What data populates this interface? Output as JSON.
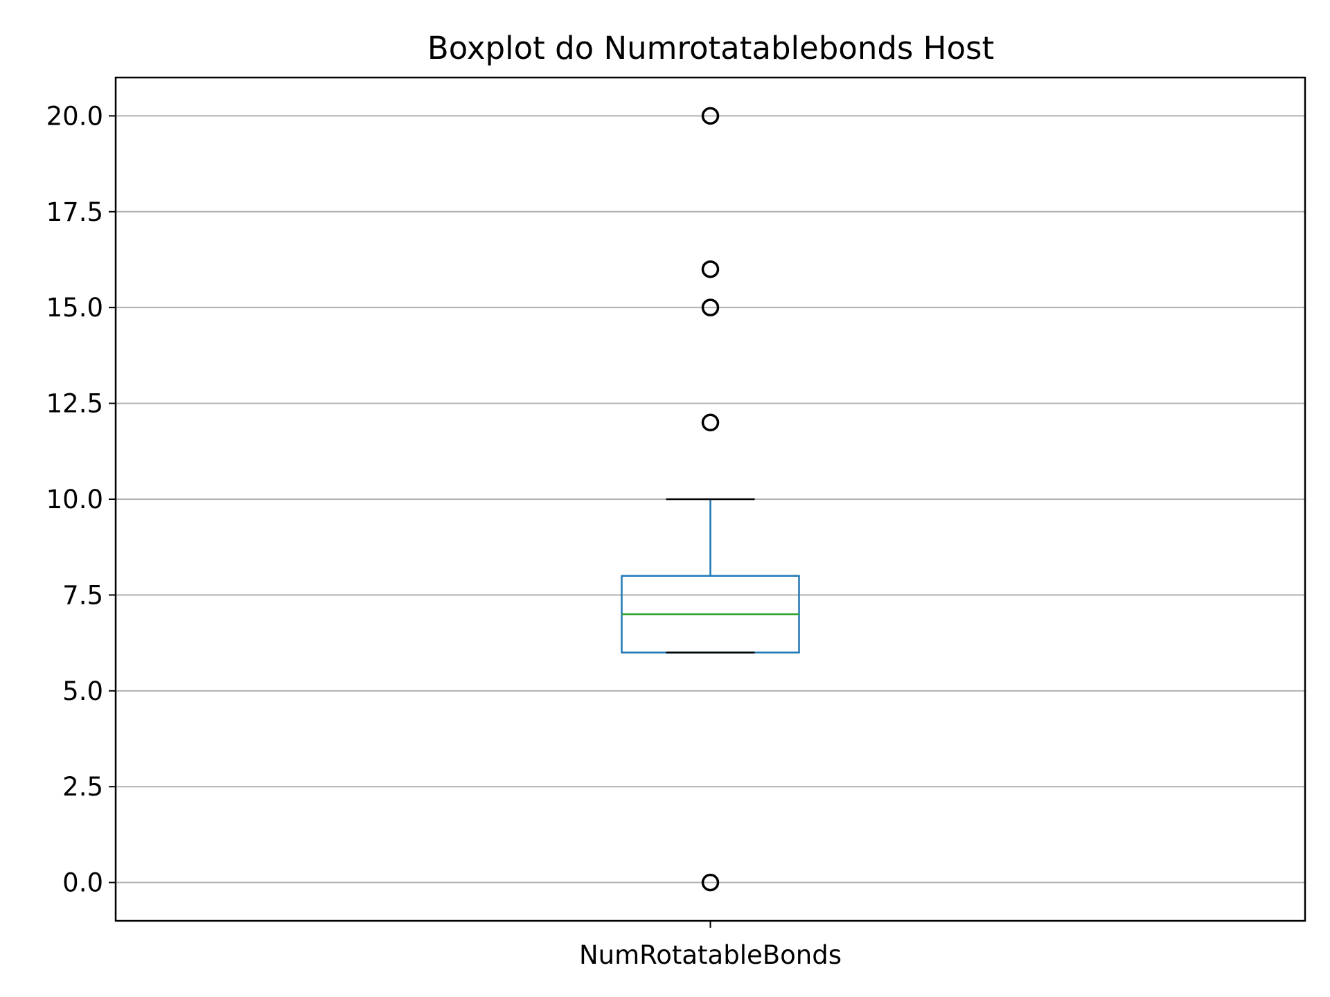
{
  "chart_data": {
    "type": "box",
    "title": "Boxplot do Numrotatablebonds Host",
    "xlabel": "",
    "ylabel": "",
    "categories": [
      "NumRotatableBonds"
    ],
    "ylim": [
      -1,
      21
    ],
    "yticks": [
      0.0,
      2.5,
      5.0,
      7.5,
      10.0,
      12.5,
      15.0,
      17.5,
      20.0
    ],
    "ytick_labels": [
      "0.0",
      "2.5",
      "5.0",
      "7.5",
      "10.0",
      "12.5",
      "15.0",
      "17.5",
      "20.0"
    ],
    "grid": "horizontal",
    "box": {
      "whisker_low": 6,
      "q1": 6,
      "median": 7,
      "q3": 8,
      "whisker_high": 10,
      "outliers": [
        0,
        12,
        15,
        16,
        20
      ]
    },
    "colors": {
      "box": "#1f77b4",
      "median": "#2ca02c",
      "whisker_cap": "#000000",
      "outlier": "#000000",
      "grid": "#b0b0b0"
    }
  }
}
